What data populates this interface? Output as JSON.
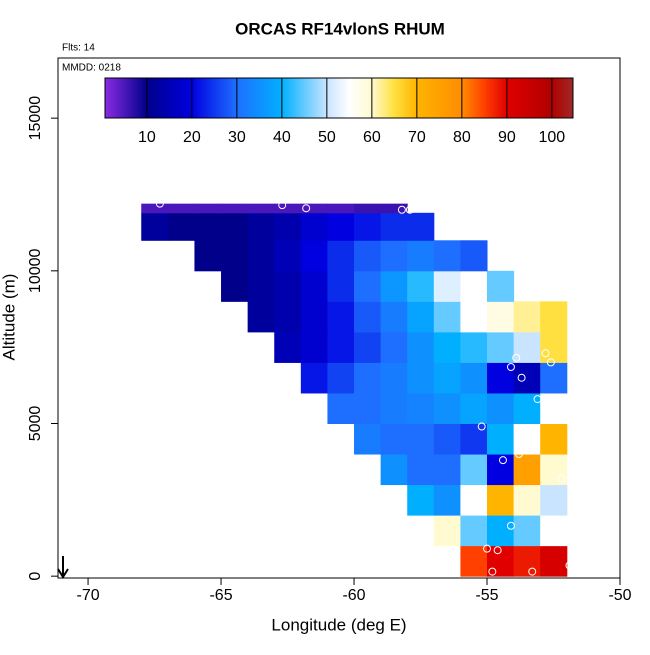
{
  "chart_data": {
    "type": "heatmap",
    "title": "ORCAS RF14vlonS RHUM",
    "flights_label": "Flts: 14",
    "date_label": "MMDD: 0218",
    "x_label": "Longitude (deg E)",
    "y_label": "Altitude (m)",
    "xlim": [
      -71.13,
      -50
    ],
    "xticks": [
      -70,
      -65,
      -60,
      -55,
      -50
    ],
    "ylim": [
      -60,
      16970
    ],
    "yticks": [
      0,
      5000,
      10000,
      15000
    ],
    "lon_edges": [
      -68,
      -67,
      -66,
      -65,
      -64,
      -63,
      -62,
      -61,
      -60,
      -59,
      -58,
      -57,
      -56,
      -55,
      -54,
      -53,
      -52
    ],
    "alt_edges": [
      0,
      1000,
      2000,
      3000,
      4000,
      5000,
      6000,
      7000,
      8000,
      9000,
      10000,
      11000,
      11900,
      12200
    ],
    "z": [
      [
        null,
        null,
        null,
        null,
        null,
        null,
        null,
        null,
        null,
        null,
        null,
        null,
        85,
        90,
        88,
        92
      ],
      [
        null,
        null,
        null,
        null,
        null,
        null,
        null,
        null,
        null,
        null,
        null,
        60,
        45,
        40,
        45,
        55
      ],
      [
        null,
        null,
        null,
        null,
        null,
        null,
        null,
        null,
        null,
        null,
        40,
        35,
        55,
        70,
        60,
        50
      ],
      [
        null,
        null,
        null,
        null,
        null,
        null,
        null,
        null,
        null,
        35,
        30,
        30,
        45,
        20,
        75,
        60
      ],
      [
        null,
        null,
        null,
        null,
        null,
        null,
        null,
        null,
        32,
        30,
        30,
        28,
        25,
        40,
        55,
        70
      ],
      [
        null,
        null,
        null,
        null,
        null,
        null,
        null,
        30,
        30,
        32,
        33,
        35,
        38,
        35,
        40,
        55
      ],
      [
        null,
        null,
        null,
        null,
        null,
        null,
        22,
        26,
        30,
        32,
        35,
        38,
        35,
        20,
        15,
        30
      ],
      [
        null,
        null,
        null,
        null,
        null,
        15,
        18,
        22,
        26,
        30,
        35,
        40,
        42,
        45,
        50,
        65
      ],
      [
        null,
        null,
        null,
        null,
        12,
        14,
        18,
        22,
        28,
        32,
        38,
        45,
        55,
        58,
        62,
        65
      ],
      [
        null,
        null,
        null,
        10,
        12,
        14,
        18,
        24,
        30,
        36,
        42,
        52,
        55,
        45,
        null,
        null
      ],
      [
        null,
        null,
        10,
        10,
        12,
        15,
        20,
        24,
        28,
        30,
        32,
        30,
        28,
        null,
        null,
        null
      ],
      [
        12,
        10,
        10,
        10,
        12,
        14,
        18,
        20,
        22,
        24,
        24,
        null,
        null,
        null,
        null,
        null
      ],
      [
        5,
        5,
        5,
        5,
        5,
        5,
        5,
        5,
        6,
        6,
        null,
        null,
        null,
        null,
        null,
        null
      ]
    ],
    "colorbar_lim": [
      0.7,
      104.7
    ],
    "colorbar_ticks": [
      10,
      20,
      30,
      40,
      50,
      60,
      70,
      80,
      90,
      100
    ],
    "colorscale": [
      [
        0.7,
        "#8a2be2"
      ],
      [
        10,
        "#00008b"
      ],
      [
        20,
        "#0000e0"
      ],
      [
        30,
        "#1e6fff"
      ],
      [
        40,
        "#00b0ff"
      ],
      [
        50,
        "#c8e4ff"
      ],
      [
        55,
        "#ffffff"
      ],
      [
        60,
        "#fffad0"
      ],
      [
        65,
        "#ffe040"
      ],
      [
        70,
        "#ffb400"
      ],
      [
        80,
        "#ff8c00"
      ],
      [
        85,
        "#ff4000"
      ],
      [
        90,
        "#e00000"
      ],
      [
        100,
        "#b00000"
      ],
      [
        104.7,
        "#a02828"
      ]
    ],
    "points": {
      "lon": [
        -67.3,
        -62.7,
        -61.8,
        -58.2,
        -57.9,
        -53.9,
        -54.1,
        -53.7,
        -52.8,
        -52.6,
        -53.1,
        -51.7,
        -55.2,
        -53.8,
        -54.4,
        -52.2,
        -54.1,
        -52.0,
        -55.0,
        -54.6,
        -53.3,
        -51.9,
        -54.8
      ],
      "alt": [
        12200,
        12150,
        12050,
        12000,
        12000,
        7150,
        6850,
        6500,
        7300,
        7000,
        5800,
        6100,
        4900,
        4000,
        3800,
        3200,
        1650,
        1500,
        900,
        850,
        150,
        350,
        150
      ]
    }
  }
}
